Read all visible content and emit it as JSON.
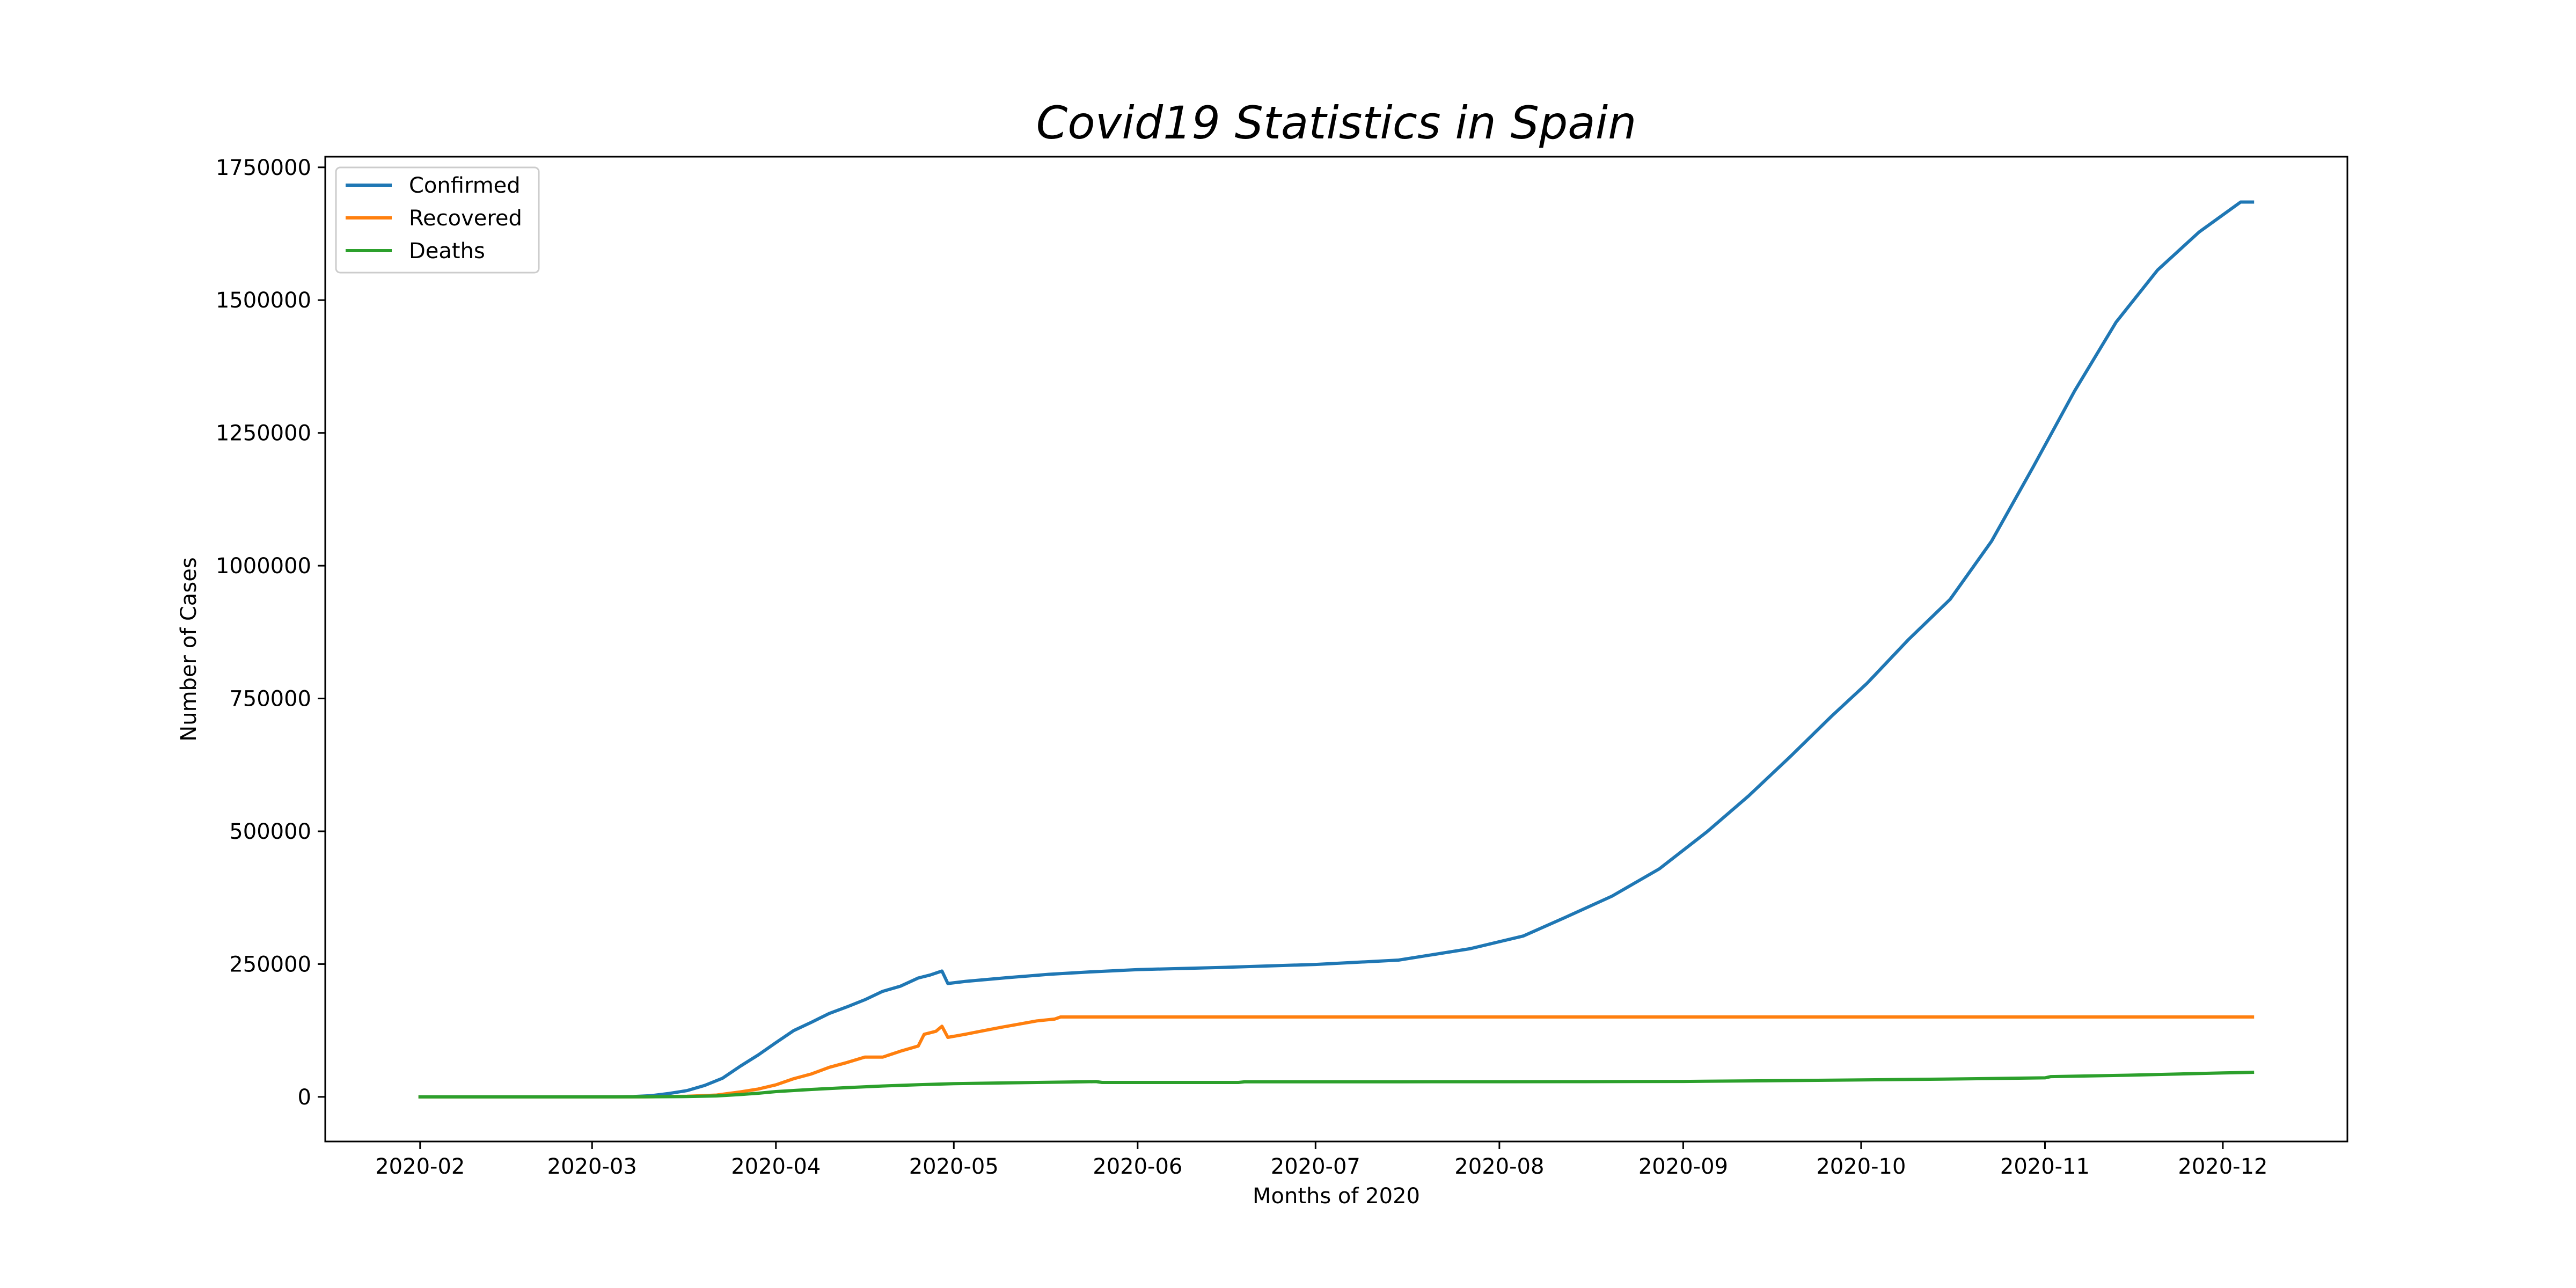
{
  "chart_data": {
    "type": "line",
    "title": "Covid19 Statistics in Spain",
    "xlabel": "Months of 2020",
    "ylabel": "Number of Cases",
    "x_ticks": [
      "2020-02",
      "2020-03",
      "2020-04",
      "2020-05",
      "2020-06",
      "2020-07",
      "2020-08",
      "2020-09",
      "2020-10",
      "2020-11",
      "2020-12"
    ],
    "y_ticks": [
      0,
      250000,
      500000,
      750000,
      1000000,
      1250000,
      1500000,
      1750000
    ],
    "xlim": [
      "2020-01-16",
      "2020-12-22"
    ],
    "ylim": [
      -84000,
      1770000
    ],
    "grid": false,
    "legend_position": "top-left",
    "series": [
      {
        "name": "Confirmed",
        "color": "#1f77b4",
        "points": [
          [
            "2020-02-01",
            1
          ],
          [
            "2020-02-15",
            2
          ],
          [
            "2020-03-01",
            84
          ],
          [
            "2020-03-05",
            282
          ],
          [
            "2020-03-08",
            673
          ],
          [
            "2020-03-11",
            2277
          ],
          [
            "2020-03-14",
            6391
          ],
          [
            "2020-03-17",
            11748
          ],
          [
            "2020-03-20",
            21571
          ],
          [
            "2020-03-23",
            35136
          ],
          [
            "2020-03-26",
            57786
          ],
          [
            "2020-03-29",
            78797
          ],
          [
            "2020-04-01",
            102136
          ],
          [
            "2020-04-04",
            124736
          ],
          [
            "2020-04-07",
            140510
          ],
          [
            "2020-04-10",
            157022
          ],
          [
            "2020-04-13",
            169496
          ],
          [
            "2020-04-16",
            182816
          ],
          [
            "2020-04-19",
            198674
          ],
          [
            "2020-04-22",
            208389
          ],
          [
            "2020-04-25",
            223759
          ],
          [
            "2020-04-27",
            229422
          ],
          [
            "2020-04-29",
            236899
          ],
          [
            "2020-04-30",
            213435
          ],
          [
            "2020-05-03",
            217466
          ],
          [
            "2020-05-10",
            224350
          ],
          [
            "2020-05-17",
            230698
          ],
          [
            "2020-05-24",
            235290
          ],
          [
            "2020-06-01",
            239638
          ],
          [
            "2020-06-15",
            243605
          ],
          [
            "2020-07-01",
            249271
          ],
          [
            "2020-07-15",
            257494
          ],
          [
            "2020-07-27",
            278782
          ],
          [
            "2020-08-05",
            302814
          ],
          [
            "2020-08-12",
            337334
          ],
          [
            "2020-08-20",
            377906
          ],
          [
            "2020-08-28",
            429507
          ],
          [
            "2020-09-05",
            498989
          ],
          [
            "2020-09-12",
            566326
          ],
          [
            "2020-09-19",
            640040
          ],
          [
            "2020-09-26",
            716481
          ],
          [
            "2020-10-02",
            778607
          ],
          [
            "2020-10-09",
            861112
          ],
          [
            "2020-10-16",
            936560
          ],
          [
            "2020-10-23",
            1046132
          ],
          [
            "2020-10-30",
            1185678
          ],
          [
            "2020-11-06",
            1328832
          ],
          [
            "2020-11-13",
            1458591
          ],
          [
            "2020-11-20",
            1556730
          ],
          [
            "2020-11-27",
            1628208
          ],
          [
            "2020-12-04",
            1684647
          ],
          [
            "2020-12-06",
            1684647
          ]
        ]
      },
      {
        "name": "Recovered",
        "color": "#ff7f0e",
        "points": [
          [
            "2020-02-01",
            0
          ],
          [
            "2020-03-01",
            0
          ],
          [
            "2020-03-10",
            183
          ],
          [
            "2020-03-17",
            1107
          ],
          [
            "2020-03-22",
            3355
          ],
          [
            "2020-03-26",
            9357
          ],
          [
            "2020-03-29",
            14709
          ],
          [
            "2020-04-01",
            22647
          ],
          [
            "2020-04-04",
            34219
          ],
          [
            "2020-04-07",
            43208
          ],
          [
            "2020-04-10",
            55668
          ],
          [
            "2020-04-13",
            64727
          ],
          [
            "2020-04-16",
            74797
          ],
          [
            "2020-04-19",
            74797
          ],
          [
            "2020-04-22",
            85915
          ],
          [
            "2020-04-25",
            95708
          ],
          [
            "2020-04-26",
            117727
          ],
          [
            "2020-04-28",
            123486
          ],
          [
            "2020-04-29",
            132929
          ],
          [
            "2020-04-30",
            112050
          ],
          [
            "2020-05-03",
            118000
          ],
          [
            "2020-05-06",
            124500
          ],
          [
            "2020-05-09",
            131000
          ],
          [
            "2020-05-12",
            137000
          ],
          [
            "2020-05-15",
            143000
          ],
          [
            "2020-05-18",
            146500
          ],
          [
            "2020-05-19",
            150376
          ],
          [
            "2020-06-01",
            150376
          ],
          [
            "2020-12-06",
            150376
          ]
        ]
      },
      {
        "name": "Deaths",
        "color": "#2ca02c",
        "points": [
          [
            "2020-02-01",
            0
          ],
          [
            "2020-03-01",
            0
          ],
          [
            "2020-03-10",
            36
          ],
          [
            "2020-03-17",
            533
          ],
          [
            "2020-03-22",
            1772
          ],
          [
            "2020-03-26",
            4365
          ],
          [
            "2020-03-29",
            6803
          ],
          [
            "2020-04-01",
            10003
          ],
          [
            "2020-04-07",
            14045
          ],
          [
            "2020-04-13",
            17489
          ],
          [
            "2020-04-19",
            20453
          ],
          [
            "2020-04-25",
            22902
          ],
          [
            "2020-05-01",
            24824
          ],
          [
            "2020-05-10",
            26478
          ],
          [
            "2020-05-20",
            27888
          ],
          [
            "2020-05-25",
            28752
          ],
          [
            "2020-05-26",
            27117
          ],
          [
            "2020-06-18",
            27136
          ],
          [
            "2020-06-19",
            28315
          ],
          [
            "2020-07-15",
            28416
          ],
          [
            "2020-08-15",
            28617
          ],
          [
            "2020-09-01",
            29094
          ],
          [
            "2020-09-15",
            30243
          ],
          [
            "2020-10-01",
            31973
          ],
          [
            "2020-10-15",
            33413
          ],
          [
            "2020-11-01",
            35878
          ],
          [
            "2020-11-02",
            38118
          ],
          [
            "2020-11-15",
            40769
          ],
          [
            "2020-12-01",
            45069
          ],
          [
            "2020-12-06",
            46252
          ]
        ]
      }
    ]
  }
}
